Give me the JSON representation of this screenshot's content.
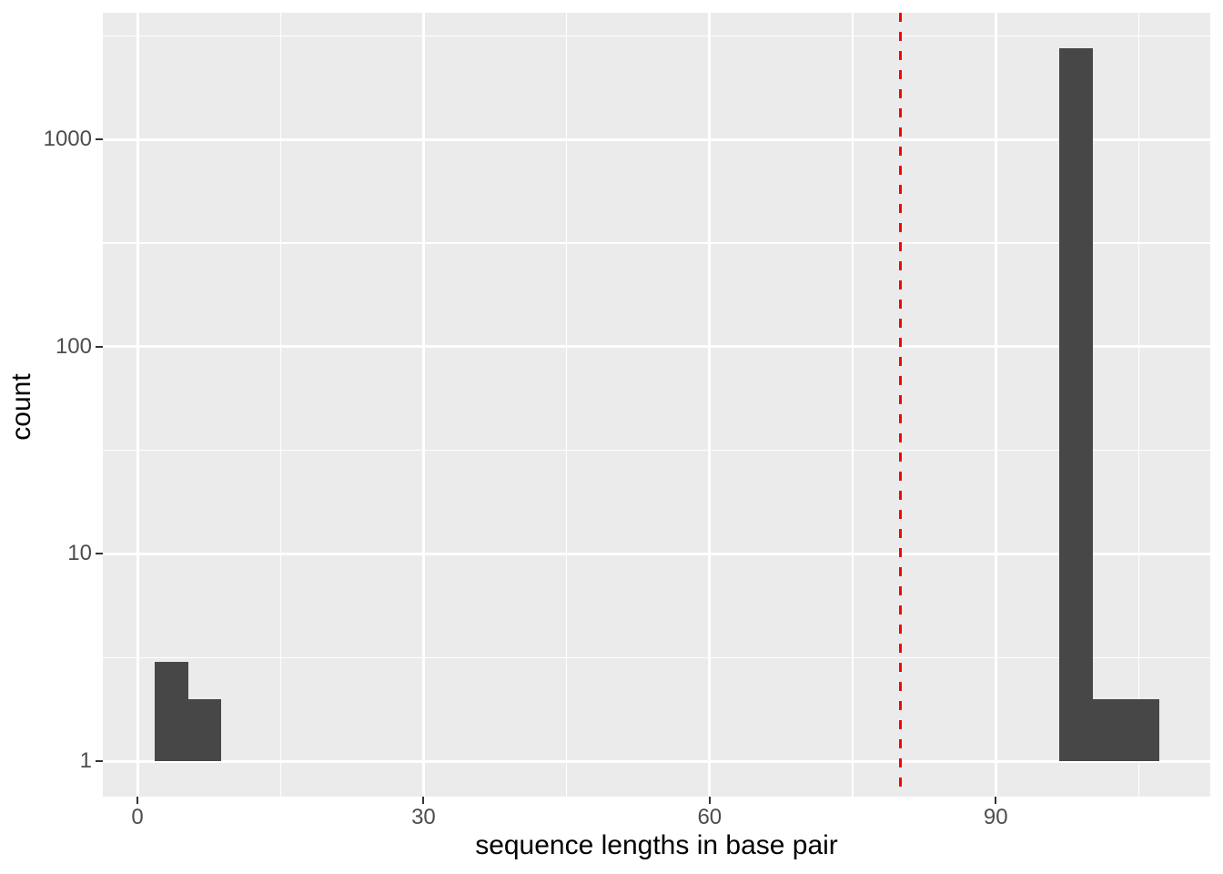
{
  "chart_data": {
    "type": "bar",
    "subtype": "histogram",
    "title": "",
    "xlabel": "sequence lengths in base pair",
    "ylabel": "count",
    "y_scale": "log10",
    "grid": true,
    "legend": "none",
    "x_ticks": [
      0,
      30,
      60,
      90
    ],
    "x_tick_labels": [
      "0",
      "30",
      "60",
      "90"
    ],
    "y_ticks": [
      1,
      10,
      100,
      1000
    ],
    "y_tick_labels": [
      "1",
      "10",
      "100",
      "1000"
    ],
    "x_minor_ticks": [
      15,
      45,
      75,
      105
    ],
    "y_minor_log10": [
      0.5,
      1.5,
      2.5,
      3.5
    ],
    "x_range": [
      -3.63,
      112.5
    ],
    "y_log_range": [
      -0.171,
      3.611
    ],
    "bars": [
      {
        "x0": 1.8,
        "x1": 5.3,
        "count": 3
      },
      {
        "x0": 5.3,
        "x1": 8.8,
        "count": 2
      },
      {
        "x0": 96.7,
        "x1": 100.2,
        "count": 2750
      },
      {
        "x0": 100.2,
        "x1": 103.7,
        "count": 2
      },
      {
        "x0": 103.7,
        "x1": 107.2,
        "count": 2
      }
    ],
    "vline": {
      "x": 80,
      "linetype": "dashed",
      "color": "#FF0000"
    },
    "colors": {
      "figure_background": "#FFFFFF",
      "panel_background": "#EBEBEB",
      "grid": "#FFFFFF",
      "bar_fill": "#474747",
      "axis_text": "#4D4D4D",
      "axis_title": "#000000",
      "tick_marks": "#333333",
      "vline": "#FF0000"
    }
  }
}
